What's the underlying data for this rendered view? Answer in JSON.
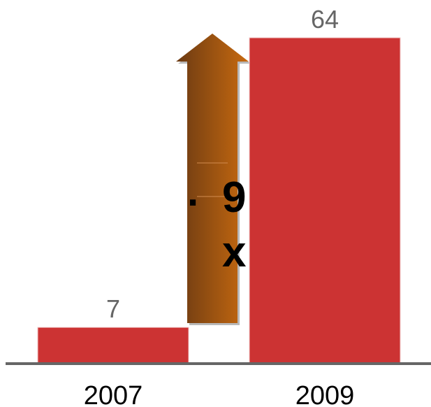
{
  "chart_data": {
    "type": "bar",
    "categories": [
      "2007",
      "2009"
    ],
    "values": [
      7,
      64
    ],
    "title": "",
    "xlabel": "",
    "ylabel": "",
    "ylim": [
      0,
      64
    ],
    "grid": false,
    "bar_color": "#CC3333",
    "axis_color": "#666666",
    "label_color": "#666666"
  },
  "annotation": {
    "growth_dot": ".",
    "growth_number": "9",
    "growth_suffix": "x",
    "arrow_color_dark": "#6B3A12",
    "arrow_color_light": "#C86A10"
  }
}
